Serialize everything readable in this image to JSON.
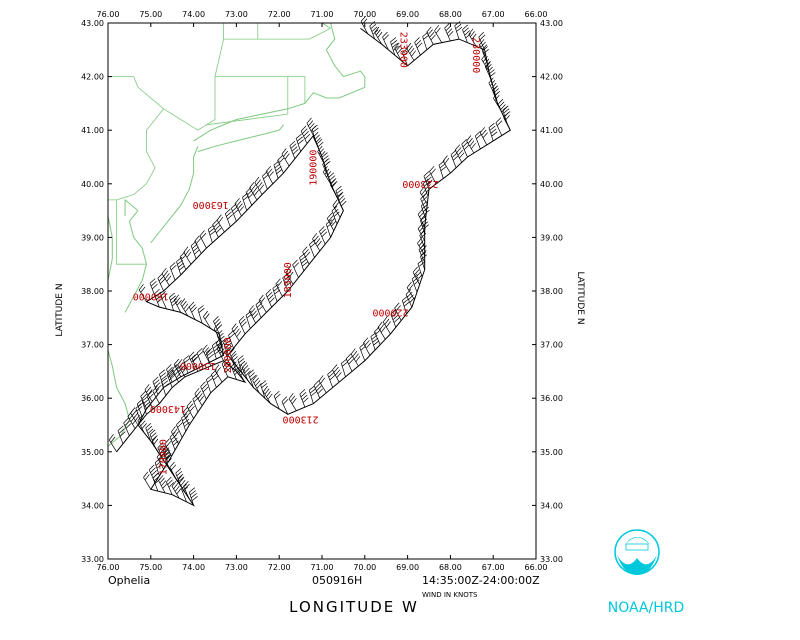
{
  "map": {
    "x_ticks": [
      "76.00",
      "75.00",
      "74.00",
      "73.00",
      "72.00",
      "71.00",
      "70.00",
      "69.00",
      "68.00",
      "67.00",
      "66.00"
    ],
    "y_ticks": [
      "43.00",
      "42.00",
      "41.00",
      "40.00",
      "39.00",
      "38.00",
      "37.00",
      "36.00",
      "35.00",
      "34.00",
      "33.00"
    ],
    "lon_range": [
      -76,
      -66
    ],
    "lat_range": [
      33,
      43
    ],
    "x_axis_label": "LONGITUDE  W",
    "y_axis_label_left": "LATITUDE  N",
    "y_axis_label_right": "LATITUDE  N",
    "storm_name": "Ophelia",
    "date_code": "050916H",
    "time_range": "14:35:00Z-24:00:00Z",
    "wind_units": "WIND IN KNOTS",
    "agency": "NOAA/HRD",
    "colors": {
      "coast": "#7fc87f",
      "track": "#000000",
      "time_label": "#c00000",
      "logo": "#00c8dc"
    },
    "time_labels": [
      {
        "text": "233000",
        "lon": -69.1,
        "lat": 42.5,
        "rot": 90
      },
      {
        "text": "230000",
        "lon": -67.4,
        "lat": 42.4,
        "rot": 90
      },
      {
        "text": "190000",
        "lon": -71.2,
        "lat": 40.3,
        "rot": 270
      },
      {
        "text": "223000",
        "lon": -68.7,
        "lat": 40.0,
        "rot": 180
      },
      {
        "text": "163000",
        "lon": -73.6,
        "lat": 39.6,
        "rot": 180
      },
      {
        "text": "183000",
        "lon": -71.8,
        "lat": 38.2,
        "rot": 270
      },
      {
        "text": "220000",
        "lon": -69.4,
        "lat": 37.6,
        "rot": 180
      },
      {
        "text": "160000",
        "lon": -75.0,
        "lat": 37.9,
        "rot": 180
      },
      {
        "text": "200000",
        "lon": -73.2,
        "lat": 36.8,
        "rot": 270
      },
      {
        "text": "150000",
        "lon": -73.9,
        "lat": 36.6,
        "rot": 180
      },
      {
        "text": "143000",
        "lon": -74.6,
        "lat": 35.8,
        "rot": 180
      },
      {
        "text": "213000",
        "lon": -71.5,
        "lat": 35.6,
        "rot": 180
      },
      {
        "text": "170000",
        "lon": -74.7,
        "lat": 34.9,
        "rot": 270
      }
    ],
    "track": [
      [
        -75.8,
        35.0
      ],
      [
        -75.5,
        35.3
      ],
      [
        -75.1,
        35.7
      ],
      [
        -74.8,
        35.9
      ],
      [
        -74.5,
        36.2
      ],
      [
        -74.2,
        36.4
      ],
      [
        -73.9,
        36.5
      ],
      [
        -73.6,
        36.6
      ],
      [
        -73.3,
        36.7
      ],
      [
        -73.0,
        36.5
      ],
      [
        -72.8,
        36.3
      ],
      [
        -73.2,
        36.4
      ],
      [
        -73.6,
        36.1
      ],
      [
        -74.1,
        35.5
      ],
      [
        -74.6,
        34.8
      ],
      [
        -75.0,
        34.3
      ],
      [
        -74.5,
        34.2
      ],
      [
        -74.0,
        34.0
      ],
      [
        -74.5,
        34.6
      ],
      [
        -75.0,
        35.2
      ],
      [
        -75.3,
        35.5
      ],
      [
        -75.1,
        35.8
      ],
      [
        -74.7,
        36.2
      ],
      [
        -74.3,
        36.4
      ],
      [
        -73.8,
        36.6
      ],
      [
        -73.3,
        36.8
      ],
      [
        -73.4,
        37.2
      ],
      [
        -73.8,
        37.4
      ],
      [
        -74.3,
        37.6
      ],
      [
        -74.8,
        37.7
      ],
      [
        -75.1,
        37.8
      ],
      [
        -74.7,
        38.0
      ],
      [
        -74.3,
        38.3
      ],
      [
        -73.7,
        38.8
      ],
      [
        -73.0,
        39.3
      ],
      [
        -72.4,
        39.8
      ],
      [
        -71.9,
        40.2
      ],
      [
        -71.5,
        40.6
      ],
      [
        -71.2,
        40.9
      ],
      [
        -71.0,
        40.5
      ],
      [
        -70.8,
        40.0
      ],
      [
        -70.5,
        39.5
      ],
      [
        -70.8,
        39.0
      ],
      [
        -71.3,
        38.5
      ],
      [
        -71.8,
        38.0
      ],
      [
        -72.3,
        37.6
      ],
      [
        -72.8,
        37.2
      ],
      [
        -73.2,
        36.8
      ],
      [
        -73.0,
        36.6
      ],
      [
        -72.6,
        36.2
      ],
      [
        -72.2,
        35.9
      ],
      [
        -71.8,
        35.7
      ],
      [
        -71.2,
        35.9
      ],
      [
        -70.6,
        36.3
      ],
      [
        -70.0,
        36.7
      ],
      [
        -69.4,
        37.2
      ],
      [
        -68.9,
        37.7
      ],
      [
        -68.6,
        38.4
      ],
      [
        -68.6,
        39.2
      ],
      [
        -68.5,
        39.9
      ],
      [
        -68.0,
        40.2
      ],
      [
        -67.6,
        40.5
      ],
      [
        -67.0,
        40.8
      ],
      [
        -66.6,
        41.0
      ],
      [
        -66.9,
        41.5
      ],
      [
        -67.1,
        42.1
      ],
      [
        -67.2,
        42.5
      ],
      [
        -67.8,
        42.7
      ],
      [
        -68.4,
        42.6
      ],
      [
        -69.0,
        42.2
      ],
      [
        -69.6,
        42.6
      ],
      [
        -70.1,
        42.9
      ]
    ],
    "coast": [
      [
        [
          -76.0,
          35.1
        ],
        [
          -75.7,
          35.3
        ],
        [
          -75.5,
          35.6
        ],
        [
          -75.6,
          35.9
        ],
        [
          -75.8,
          36.2
        ],
        [
          -75.9,
          36.6
        ],
        [
          -76.0,
          36.9
        ]
      ],
      [
        [
          -75.6,
          37.6
        ],
        [
          -75.4,
          37.9
        ],
        [
          -75.2,
          38.2
        ],
        [
          -75.1,
          38.5
        ],
        [
          -75.2,
          38.8
        ],
        [
          -75.4,
          39.0
        ],
        [
          -75.5,
          39.3
        ],
        [
          -75.3,
          39.5
        ]
      ],
      [
        [
          -75.0,
          38.9
        ],
        [
          -74.8,
          39.1
        ],
        [
          -74.6,
          39.3
        ],
        [
          -74.3,
          39.6
        ],
        [
          -74.1,
          39.9
        ],
        [
          -74.0,
          40.2
        ],
        [
          -74.0,
          40.5
        ],
        [
          -73.9,
          40.7
        ]
      ],
      [
        [
          -73.9,
          40.6
        ],
        [
          -73.5,
          40.7
        ],
        [
          -73.0,
          40.8
        ],
        [
          -72.5,
          40.9
        ],
        [
          -72.0,
          41.0
        ],
        [
          -71.9,
          41.1
        ]
      ],
      [
        [
          -74.0,
          40.8
        ],
        [
          -73.6,
          41.0
        ],
        [
          -73.0,
          41.2
        ],
        [
          -72.4,
          41.3
        ],
        [
          -71.8,
          41.4
        ],
        [
          -71.4,
          41.5
        ],
        [
          -71.2,
          41.7
        ],
        [
          -70.9,
          41.6
        ],
        [
          -70.6,
          41.6
        ],
        [
          -70.3,
          41.7
        ],
        [
          -70.0,
          41.8
        ],
        [
          -70.0,
          42.0
        ],
        [
          -70.1,
          42.1
        ],
        [
          -70.5,
          42.0
        ],
        [
          -70.7,
          42.2
        ],
        [
          -70.9,
          42.5
        ],
        [
          -70.7,
          42.7
        ],
        [
          -70.8,
          43.0
        ]
      ],
      [
        [
          -75.3,
          39.5
        ],
        [
          -75.6,
          39.7
        ],
        [
          -75.6,
          39.4
        ]
      ],
      [
        [
          -76.0,
          39.4
        ],
        [
          -75.9,
          39.0
        ],
        [
          -75.9,
          38.6
        ],
        [
          -76.0,
          38.2
        ]
      ]
    ],
    "states": [
      [
        [
          -75.8,
          39.7
        ],
        [
          -75.8,
          38.5
        ],
        [
          -75.1,
          38.5
        ]
      ],
      [
        [
          -76.0,
          39.7
        ],
        [
          -75.8,
          39.7
        ],
        [
          -75.4,
          39.8
        ],
        [
          -75.1,
          40.0
        ],
        [
          -74.9,
          40.3
        ],
        [
          -75.1,
          40.6
        ],
        [
          -75.1,
          41.0
        ],
        [
          -74.7,
          41.4
        ],
        [
          -75.3,
          41.8
        ],
        [
          -75.4,
          42.0
        ],
        [
          -76.0,
          42.0
        ]
      ],
      [
        [
          -74.7,
          41.4
        ],
        [
          -73.9,
          41.0
        ],
        [
          -73.7,
          41.1
        ],
        [
          -73.5,
          41.2
        ],
        [
          -73.5,
          42.0
        ],
        [
          -73.3,
          42.7
        ],
        [
          -73.3,
          43.0
        ]
      ],
      [
        [
          -73.7,
          41.1
        ],
        [
          -71.8,
          41.3
        ]
      ],
      [
        [
          -73.5,
          42.0
        ],
        [
          -71.8,
          42.0
        ],
        [
          -71.8,
          41.3
        ]
      ],
      [
        [
          -71.8,
          42.0
        ],
        [
          -71.4,
          42.0
        ],
        [
          -71.4,
          41.5
        ]
      ],
      [
        [
          -73.3,
          42.7
        ],
        [
          -71.3,
          42.7
        ],
        [
          -70.8,
          42.9
        ]
      ],
      [
        [
          -72.5,
          42.7
        ],
        [
          -72.5,
          43.0
        ]
      ],
      [
        [
          -71.0,
          43.0
        ],
        [
          -70.8,
          42.9
        ]
      ]
    ]
  }
}
